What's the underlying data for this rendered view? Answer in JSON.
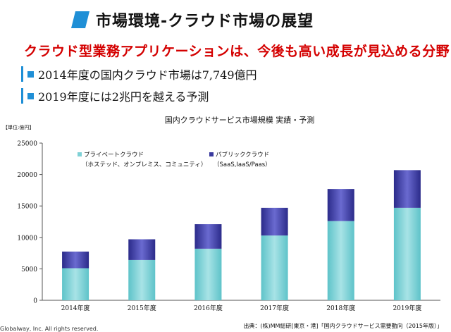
{
  "header": {
    "title": "市場環境-クラウド市場の展望",
    "subtitle": "クラウド型業務アプリケーションは、今後も高い成長が見込める分野",
    "bullets": [
      "2014年度の国内クラウド市場は7,749億円",
      "2019年度には2兆円を越える予測"
    ]
  },
  "chart_data": {
    "type": "bar",
    "stacked": true,
    "title": "国内クラウドサービス市場規模 実績・予測",
    "unit_label": "【単位:億円】",
    "categories": [
      "2014年度",
      "2015年度",
      "2016年度",
      "2017年度",
      "2018年度",
      "2019年度"
    ],
    "series": [
      {
        "name": "プライベートクラウド",
        "name_sub": "（ホステッド、オンプレミス、コミュニティ）",
        "color": "#7fd1d6",
        "values": [
          5100,
          6400,
          8200,
          10300,
          12600,
          14700
        ]
      },
      {
        "name": "パブリッククラウド",
        "name_sub": "（SaaS,IaaS/Paas）",
        "color": "#3a3a9e",
        "values": [
          2649,
          3300,
          3900,
          4400,
          5100,
          6000
        ]
      }
    ],
    "yticks": [
      "25000",
      "20000",
      "15000",
      "10000",
      "5000",
      "0"
    ],
    "ylim": [
      0,
      25000
    ],
    "grid": false,
    "legend": "top-left",
    "source": "出典：(株)MM総研[東京・港]「国内クラウドサービス需要動向（2015年版）」"
  },
  "footer": {
    "copyright": "Globalway, Inc. All rights reserved."
  },
  "colors": {
    "accent": "#1f8fd6",
    "subtitle": "#d40000"
  }
}
